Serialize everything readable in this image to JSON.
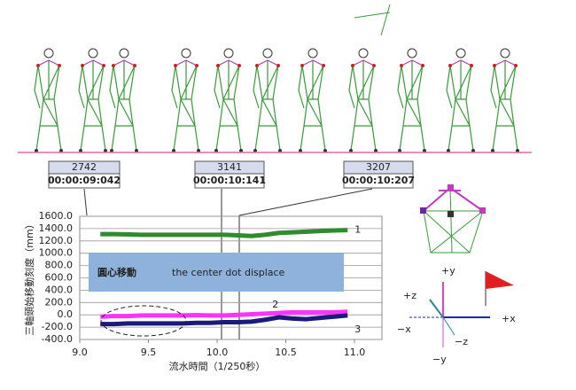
{
  "chart_data": {
    "type": "line",
    "y_label": "三軸頭始移動刻度（mm）",
    "x_label": "流水時間（1/250秒）",
    "annotation": {
      "title": "圓心移動",
      "text": "the center dot displace"
    },
    "callouts": [
      {
        "frame": "2742",
        "time": "00:00:09:042"
      },
      {
        "frame": "3141",
        "time": "00:00:10:141"
      },
      {
        "frame": "3207",
        "time": "00:00:10:207"
      }
    ],
    "axes_diagram": {
      "y_pos": "+y",
      "z_pos": "+z",
      "x_pos": "+x",
      "x_neg": "−x",
      "z_neg": "−z",
      "y_neg": "−y"
    },
    "x": [
      9.15,
      9.25,
      9.35,
      9.45,
      9.55,
      9.65,
      9.75,
      9.85,
      9.95,
      10.05,
      10.15,
      10.25,
      10.35,
      10.45,
      10.55,
      10.65,
      10.75,
      10.85,
      10.95
    ],
    "series": [
      {
        "name": "1",
        "color": "#2e8b2e",
        "values": [
          1310,
          1310,
          1305,
          1300,
          1300,
          1300,
          1300,
          1300,
          1300,
          1300,
          1290,
          1280,
          1300,
          1330,
          1340,
          1350,
          1360,
          1370,
          1375
        ]
      },
      {
        "name": "2",
        "color": "#ff33ff",
        "values": [
          -30,
          -20,
          -20,
          -10,
          -10,
          -10,
          -10,
          -5,
          -10,
          -10,
          0,
          10,
          20,
          30,
          40,
          40,
          40,
          40,
          50
        ]
      },
      {
        "name": "3",
        "color": "#1a1a7a",
        "values": [
          -150,
          -150,
          -140,
          -140,
          -140,
          -140,
          -140,
          -130,
          -130,
          -120,
          -120,
          -110,
          -80,
          -40,
          -60,
          -70,
          -50,
          -30,
          -10
        ]
      }
    ],
    "xlim": [
      9.0,
      11.2
    ],
    "xticks": [
      {
        "value": 9,
        "label": "9.0"
      },
      {
        "value": 9.5,
        "label": "9.5"
      },
      {
        "value": 10,
        "label": "10.0"
      },
      {
        "value": 10.5,
        "label": "10.5"
      },
      {
        "value": 11,
        "label": "11.0"
      }
    ],
    "ylim": [
      -400,
      1600
    ],
    "yticks": [
      {
        "value": -400,
        "label": "-400.0"
      },
      {
        "value": -200,
        "label": "-200.0"
      },
      {
        "value": 0,
        "label": "0.0"
      },
      {
        "value": 200,
        "label": "200.0"
      },
      {
        "value": 400,
        "label": "400.0"
      },
      {
        "value": 600,
        "label": "600.0"
      },
      {
        "value": 800,
        "label": "800.0"
      },
      {
        "value": 1000,
        "label": "1000.0"
      },
      {
        "value": 1200,
        "label": "1200.0"
      },
      {
        "value": 1400,
        "label": "1400.0"
      },
      {
        "value": 1600,
        "label": "1600.0"
      }
    ],
    "grid": true
  }
}
